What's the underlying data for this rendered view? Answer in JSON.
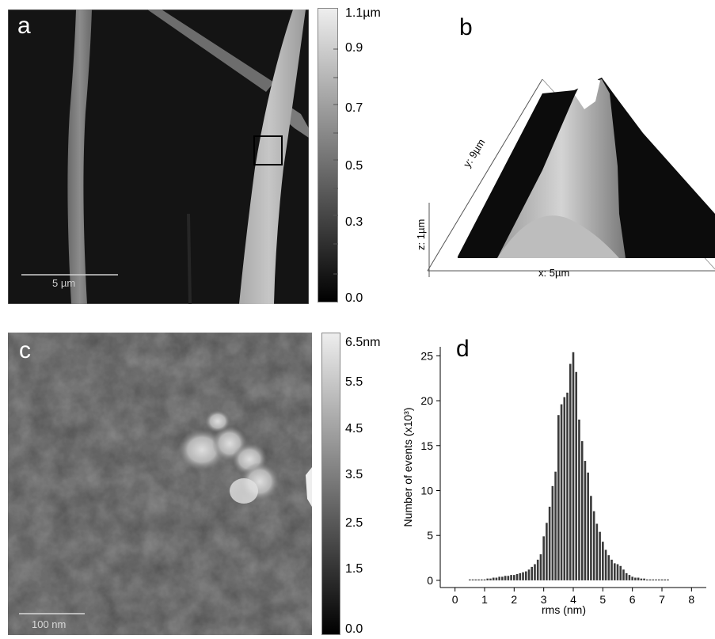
{
  "panels": {
    "a": {
      "letter": "a",
      "scale_bar": "5 µm",
      "colorbar_ticks": [
        "1.1µm",
        "0.9",
        "0.7",
        "0.5",
        "0.3",
        "0.0"
      ]
    },
    "b": {
      "letter": "b",
      "axis_y": "y: 9µm",
      "axis_z": "z: 1µm",
      "axis_x": "x: 5µm"
    },
    "c": {
      "letter": "c",
      "scale_bar": "100 nm",
      "colorbar_ticks": [
        "6.5nm",
        "5.5",
        "4.5",
        "3.5",
        "2.5",
        "1.5",
        "0.0"
      ]
    },
    "d": {
      "letter": "d"
    }
  },
  "chart_data": {
    "type": "bar",
    "xlabel": "rms (nm)",
    "ylabel": "Number of events (x10³)",
    "xlim": [
      -0.5,
      8.5
    ],
    "ylim": [
      -0.8,
      26
    ],
    "xticks": [
      0,
      1,
      2,
      3,
      4,
      5,
      6,
      7,
      8
    ],
    "yticks": [
      0,
      5,
      10,
      15,
      20,
      25
    ],
    "x": [
      0.5,
      0.6,
      0.7,
      0.8,
      0.9,
      1.0,
      1.1,
      1.2,
      1.3,
      1.4,
      1.5,
      1.6,
      1.7,
      1.8,
      1.9,
      2.0,
      2.1,
      2.2,
      2.3,
      2.4,
      2.5,
      2.6,
      2.7,
      2.8,
      2.9,
      3.0,
      3.1,
      3.2,
      3.3,
      3.4,
      3.5,
      3.6,
      3.7,
      3.8,
      3.9,
      4.0,
      4.1,
      4.2,
      4.3,
      4.4,
      4.5,
      4.6,
      4.7,
      4.8,
      4.9,
      5.0,
      5.1,
      5.2,
      5.3,
      5.4,
      5.5,
      5.6,
      5.7,
      5.8,
      5.9,
      6.0,
      6.1,
      6.2,
      6.3,
      6.4,
      6.5,
      6.6,
      6.7,
      6.8,
      6.9,
      7.0,
      7.1,
      7.2
    ],
    "values": [
      0.1,
      0.1,
      0.1,
      0.1,
      0.1,
      0.1,
      0.2,
      0.2,
      0.3,
      0.3,
      0.4,
      0.4,
      0.5,
      0.5,
      0.6,
      0.6,
      0.7,
      0.8,
      0.9,
      1.0,
      1.2,
      1.5,
      1.8,
      2.3,
      2.9,
      4.9,
      6.4,
      8.2,
      10.5,
      12.1,
      18.4,
      19.6,
      20.4,
      20.9,
      24.1,
      25.4,
      23.2,
      17.9,
      15.5,
      13.3,
      12.0,
      9.4,
      7.7,
      6.3,
      5.4,
      4.3,
      3.4,
      2.8,
      2.3,
      1.9,
      1.8,
      1.6,
      1.2,
      0.8,
      0.6,
      0.4,
      0.3,
      0.3,
      0.2,
      0.2,
      0.1,
      0.1,
      0.1,
      0.1,
      0.1,
      0.1,
      0.1,
      0.1
    ]
  }
}
